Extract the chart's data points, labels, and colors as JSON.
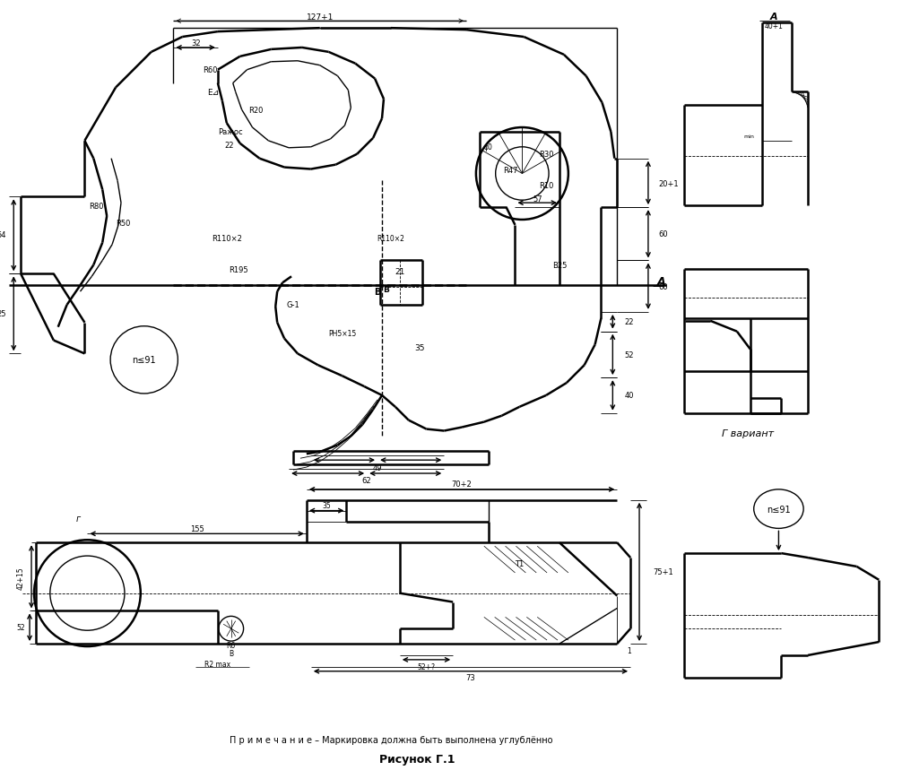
{
  "title": "Рисунок Г.1",
  "note": "П р и м е ч а н и е – Маркировка должна быть выполнена углублённо",
  "g_variant": "Г вариант",
  "background": "#ffffff",
  "fig_width": 10.06,
  "fig_height": 8.7,
  "dpi": 100
}
